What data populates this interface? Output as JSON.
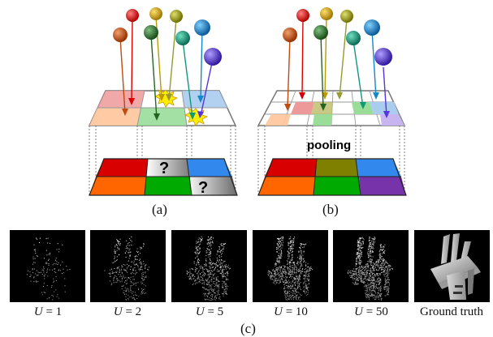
{
  "labels": {
    "a": "(a)",
    "b": "(b)",
    "c": "(c)",
    "pooling": "pooling",
    "unknown_mark": "?"
  },
  "captions": [
    {
      "var": "U",
      "rest": " = 1"
    },
    {
      "var": "U",
      "rest": " = 2"
    },
    {
      "var": "U",
      "rest": " = 5"
    },
    {
      "var": "U",
      "rest": " = 10"
    },
    {
      "var": "U",
      "rest": " = 50"
    },
    {
      "plain": "Ground truth"
    }
  ],
  "colors": {
    "red": "#d80000",
    "olive": "#7f7f00",
    "blue": "#3388ee",
    "orange": "#ff6600",
    "green": "#00aa00",
    "purple": "#7733aa",
    "rust": "#c04a10",
    "dark_green": "#226622",
    "yellow": "#bb9900",
    "teal": "#119977",
    "sky": "#1188cc",
    "violet": "#5533dd"
  }
}
